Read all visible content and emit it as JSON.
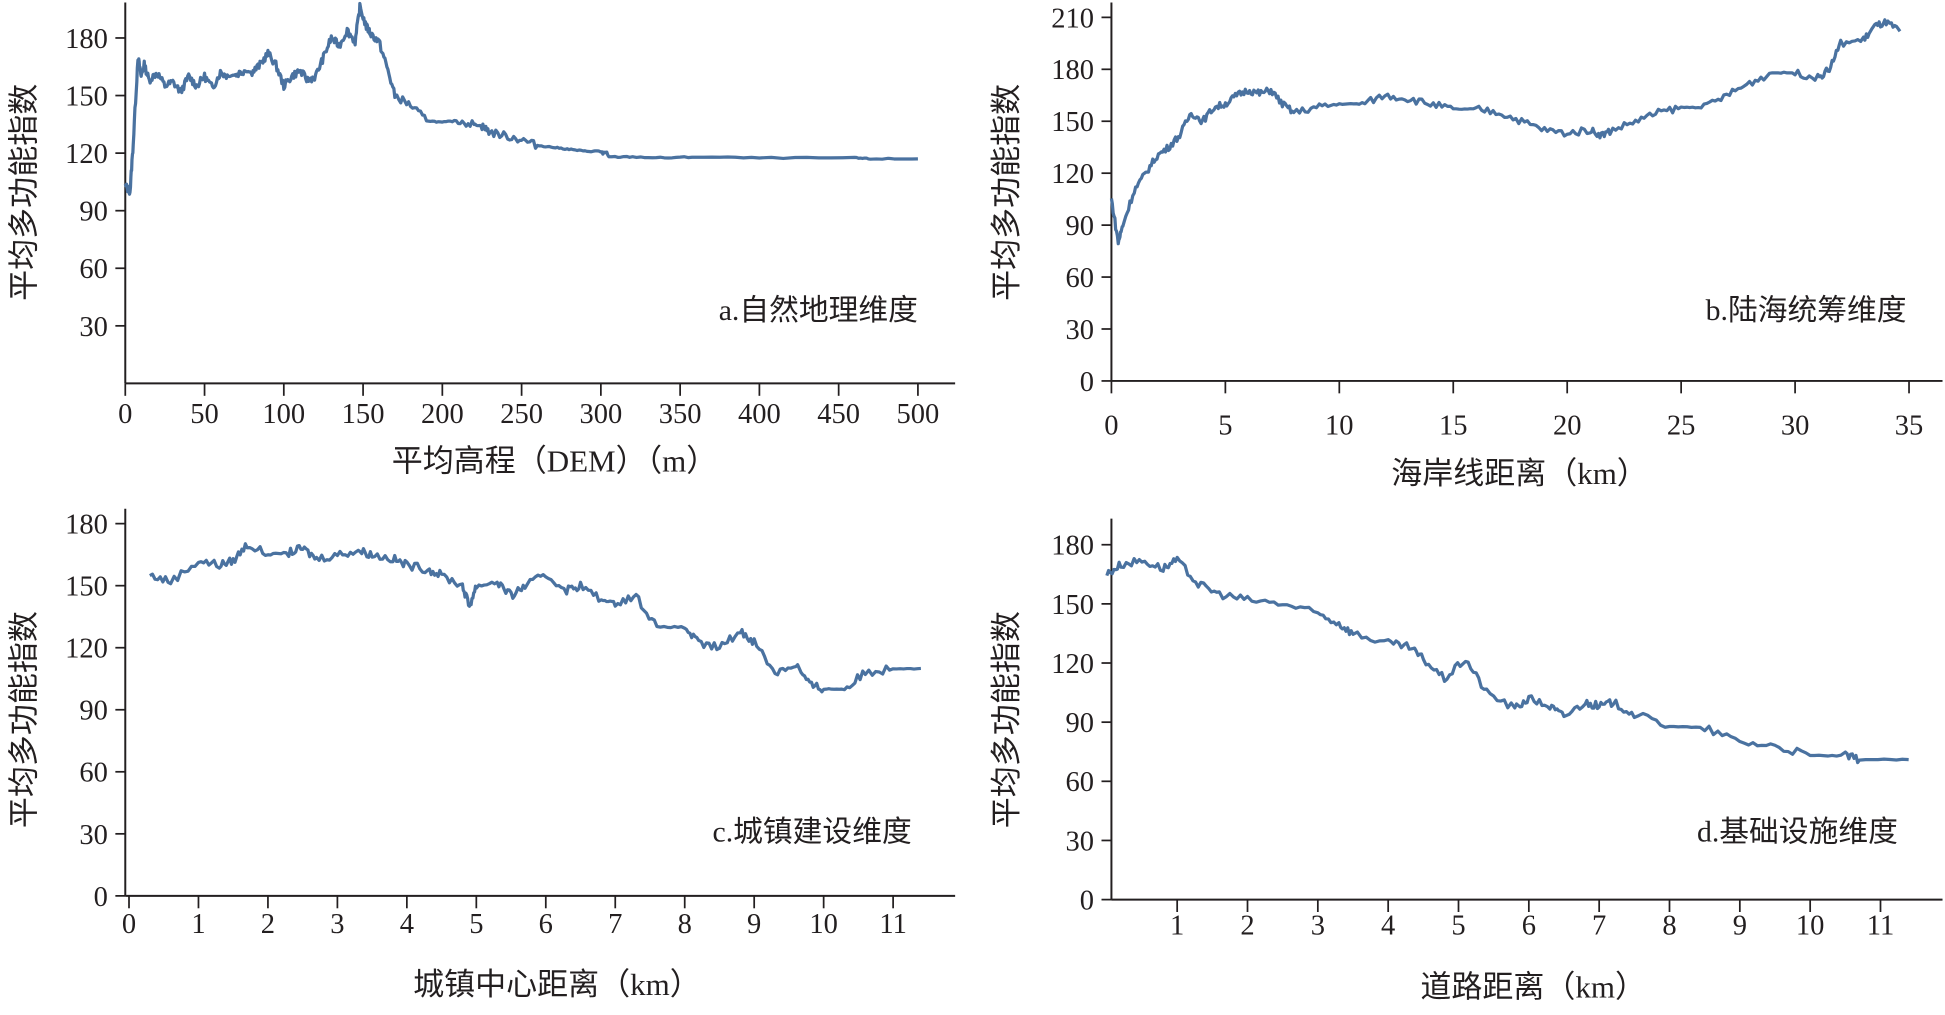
{
  "line_color": "#4a72a0",
  "chart_data": [
    {
      "type": "line",
      "panel": "a",
      "annotation": "a.自然地理维度",
      "xlabel": "平均高程（DEM）（m）",
      "ylabel": "平均多功能指数",
      "xticks": [
        0,
        50,
        100,
        150,
        200,
        250,
        300,
        350,
        400,
        450,
        500
      ],
      "yticks": [
        30,
        60,
        90,
        120,
        150,
        180
      ],
      "xlim": [
        0,
        520
      ],
      "ylim": [
        0,
        199
      ],
      "x": [
        0,
        3,
        5,
        8,
        10,
        12,
        15,
        20,
        25,
        30,
        35,
        40,
        45,
        50,
        55,
        60,
        65,
        70,
        75,
        80,
        85,
        90,
        95,
        100,
        105,
        110,
        115,
        120,
        125,
        130,
        135,
        140,
        145,
        148,
        152,
        155,
        160,
        165,
        170,
        180,
        190,
        200,
        210,
        220,
        225,
        230,
        240,
        250,
        260,
        270,
        280,
        290,
        300,
        305,
        320,
        340,
        360,
        400,
        460,
        470,
        500
      ],
      "y": [
        103,
        100,
        125,
        170,
        160,
        166,
        158,
        162,
        155,
        157,
        152,
        160,
        155,
        160,
        154,
        162,
        160,
        161,
        163,
        162,
        166,
        172,
        166,
        155,
        160,
        163,
        158,
        160,
        170,
        180,
        176,
        184,
        178,
        196,
        186,
        182,
        178,
        165,
        150,
        145,
        137,
        136,
        137,
        135,
        134,
        131,
        129,
        127,
        124,
        123,
        122,
        121,
        121,
        118,
        118,
        117.5,
        118,
        117.5,
        117.5,
        117,
        117
      ]
    },
    {
      "type": "line",
      "panel": "b",
      "annotation": "b.陆海统筹维度",
      "xlabel": "海岸线距离（km）",
      "ylabel": "平均多功能指数",
      "xticks": [
        0,
        5,
        10,
        15,
        20,
        25,
        30,
        35
      ],
      "yticks": [
        0,
        30,
        60,
        90,
        120,
        150,
        180,
        210
      ],
      "xlim": [
        0,
        36.6
      ],
      "ylim": [
        0,
        220
      ],
      "x": [
        0,
        0.3,
        0.5,
        1,
        1.5,
        2,
        2.5,
        3,
        3.5,
        4,
        4.5,
        5,
        5.5,
        6,
        6.5,
        7,
        7.5,
        8,
        9,
        10,
        11,
        12,
        13,
        14,
        15,
        16,
        17,
        18,
        19,
        20,
        21,
        21.5,
        22,
        23,
        24,
        25,
        26,
        27,
        28,
        29,
        30,
        31,
        31.5,
        32,
        33,
        33.5,
        34,
        34.6
      ],
      "y": [
        105,
        80,
        90,
        110,
        120,
        130,
        135,
        142,
        155,
        150,
        158,
        160,
        165,
        168,
        166,
        168,
        160,
        155,
        158,
        160,
        160,
        165,
        163,
        160,
        157,
        157,
        155,
        150,
        145,
        143,
        145,
        142,
        145,
        150,
        155,
        158,
        158,
        165,
        172,
        178,
        178,
        175,
        180,
        195,
        197,
        205,
        207,
        202
      ]
    },
    {
      "type": "line",
      "panel": "c",
      "annotation": "c.城镇建设维度",
      "xlabel": "城镇中心距离（km）",
      "ylabel": "平均多功能指数",
      "xticks": [
        0,
        1,
        2,
        3,
        4,
        5,
        6,
        7,
        8,
        9,
        10,
        11
      ],
      "yticks": [
        0,
        30,
        60,
        90,
        120,
        150,
        180
      ],
      "xlim": [
        -0.05,
        11.9
      ],
      "ylim": [
        0,
        182
      ],
      "x": [
        0.3,
        0.6,
        1,
        1.3,
        1.5,
        1.7,
        2,
        2.3,
        2.5,
        2.7,
        3,
        3.3,
        3.5,
        3.8,
        4,
        4.3,
        4.5,
        4.8,
        4.9,
        5,
        5.3,
        5.5,
        5.7,
        6,
        6.3,
        6.5,
        6.8,
        7,
        7.3,
        7.6,
        8,
        8.2,
        8.5,
        8.8,
        9,
        9.3,
        9.6,
        9.8,
        10,
        10.3,
        10.6,
        11,
        11.4
      ],
      "y": [
        155,
        152,
        162,
        160,
        162,
        170,
        165,
        166,
        168,
        163,
        165,
        167,
        165,
        163,
        160,
        158,
        155,
        150,
        140,
        150,
        152,
        145,
        150,
        155,
        148,
        150,
        143,
        142,
        145,
        130,
        130,
        122,
        120,
        128,
        123,
        108,
        112,
        102,
        100,
        100,
        108,
        110,
        110
      ]
    },
    {
      "type": "line",
      "panel": "d",
      "annotation": "d.基础设施维度",
      "xlabel": "道路距离（km）",
      "ylabel": "平均多功能指数",
      "xticks": [
        1,
        2,
        3,
        4,
        5,
        6,
        7,
        8,
        9,
        10,
        11
      ],
      "yticks": [
        0,
        30,
        60,
        90,
        120,
        150,
        180
      ],
      "xlim": [
        0.07,
        11.9
      ],
      "ylim": [
        0,
        185
      ],
      "x": [
        0,
        0.2,
        0.5,
        0.8,
        1,
        1.3,
        1.6,
        2,
        2.5,
        3,
        3.3,
        3.5,
        4,
        4.3,
        4.5,
        4.8,
        5.1,
        5.4,
        5.8,
        6,
        6.3,
        6.5,
        6.8,
        7,
        7.2,
        7.5,
        8,
        8.5,
        9,
        9.5,
        10,
        10.5,
        10.7,
        11.4
      ],
      "y": [
        165,
        170,
        172,
        168,
        172,
        160,
        155,
        152,
        150,
        145,
        140,
        135,
        130,
        128,
        122,
        112,
        122,
        105,
        97,
        102,
        98,
        93,
        100,
        98,
        100,
        94,
        88,
        87,
        80,
        78,
        73,
        73,
        71,
        71
      ]
    }
  ]
}
